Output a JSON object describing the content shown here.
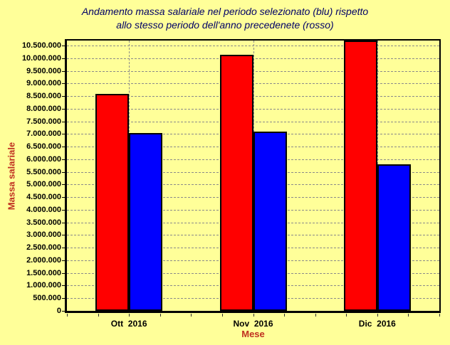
{
  "title": {
    "line1": "Andamento massa salariale nel periodo selezionato (blu) rispetto",
    "line2": "allo stesso periodo dell'anno precedenete (rosso)"
  },
  "colors": {
    "background": "#FFFF99",
    "title_text": "#000066",
    "axis_title_text": "#C03020",
    "tick_text": "#000000",
    "gridline": "#8A8A8A",
    "bar_red": "#FF0000",
    "bar_blue": "#0000FF",
    "bar_border": "#000000"
  },
  "chart_data": {
    "type": "bar",
    "title": "Andamento massa salariale nel periodo selezionato (blu) rispetto allo stesso periodo dell'anno precedenete (rosso)",
    "xlabel": "Mese",
    "ylabel": "Massa salariale",
    "categories": [
      "Ott  2016",
      "Nov  2016",
      "Dic  2016"
    ],
    "series": [
      {
        "name": "rosso (stesso periodo anno precedente)",
        "color": "#FF0000",
        "values": [
          8600000,
          10150000,
          10700000
        ]
      },
      {
        "name": "blu (periodo selezionato)",
        "color": "#0000FF",
        "values": [
          7050000,
          7100000,
          5800000
        ]
      }
    ],
    "ylim": [
      0,
      10700000
    ],
    "yticks": [
      0,
      500000,
      1000000,
      1500000,
      2000000,
      2500000,
      3000000,
      3500000,
      4000000,
      4500000,
      5000000,
      5500000,
      6000000,
      6500000,
      7000000,
      7500000,
      8000000,
      8500000,
      9000000,
      9500000,
      10000000,
      10500000
    ],
    "ytick_labels": [
      "0",
      "500.000",
      "1.000.000",
      "1.500.000",
      "2.000.000",
      "2.500.000",
      "3.000.000",
      "3.500.000",
      "4.000.000",
      "4.500.000",
      "5.000.000",
      "5.500.000",
      "6.000.000",
      "6.500.000",
      "7.000.000",
      "7.500.000",
      "8.000.000",
      "8.500.000",
      "9.000.000",
      "9.500.000",
      "10.000.000",
      "10.500.000"
    ],
    "grid": "horizontal dashed lines at each y tick, vertical dashed line at each category center",
    "legend": "none (series colors explained in title)",
    "note": "Dic 2016 red bar is clipped at the top of the plot area (value exceeds visible axis maximum 10.500.000)"
  }
}
